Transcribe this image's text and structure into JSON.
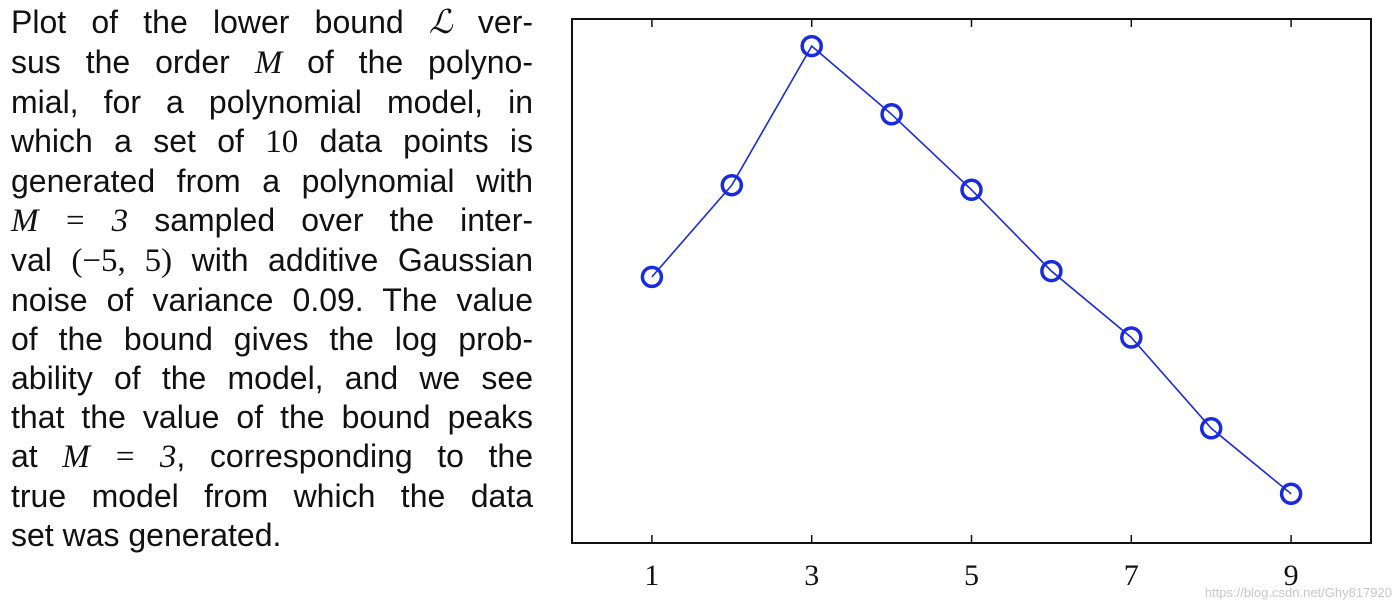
{
  "caption": {
    "lines": [
      [
        "Plot of the lower bound ",
        "ℒ",
        " ver-"
      ],
      [
        "sus the order ",
        "M",
        " of the polyno-"
      ],
      [
        "mial, for a polynomial model, in"
      ],
      [
        "which a set of ",
        "10",
        " data points is"
      ],
      [
        "generated from a polynomial with"
      ],
      [
        "M = 3",
        " sampled over the inter-"
      ],
      [
        "val ",
        "(−5, 5)",
        " with additive Gaussian"
      ],
      [
        "noise of variance 0.09. The value"
      ],
      [
        "of the bound gives the log prob-"
      ],
      [
        "ability of the model, and we see"
      ],
      [
        "that the value of the bound peaks"
      ],
      [
        "at ",
        "M = 3",
        ", corresponding to the"
      ],
      [
        "true model from which the data"
      ],
      [
        "set was generated."
      ]
    ]
  },
  "chart_data": {
    "type": "line",
    "title": "",
    "xlabel": "",
    "ylabel": "",
    "x": [
      1,
      2,
      3,
      4,
      5,
      6,
      7,
      8,
      9
    ],
    "series": [
      {
        "values": [
          0.489,
          0.692,
          1.0,
          0.849,
          0.682,
          0.502,
          0.355,
          0.154,
          0.009
        ],
        "color": "#1a2ae0",
        "marker": "open-circle"
      }
    ],
    "xlim": [
      0,
      10
    ],
    "ylim": [
      -0.1,
      1.06
    ],
    "xticks": [
      1,
      3,
      5,
      7,
      9
    ],
    "xticklabels": [
      "1",
      "3",
      "5",
      "7",
      "9"
    ],
    "yticks": [],
    "grid": false,
    "legend": "none"
  },
  "watermark": "https://blog.csdn.net/Ghy817920"
}
